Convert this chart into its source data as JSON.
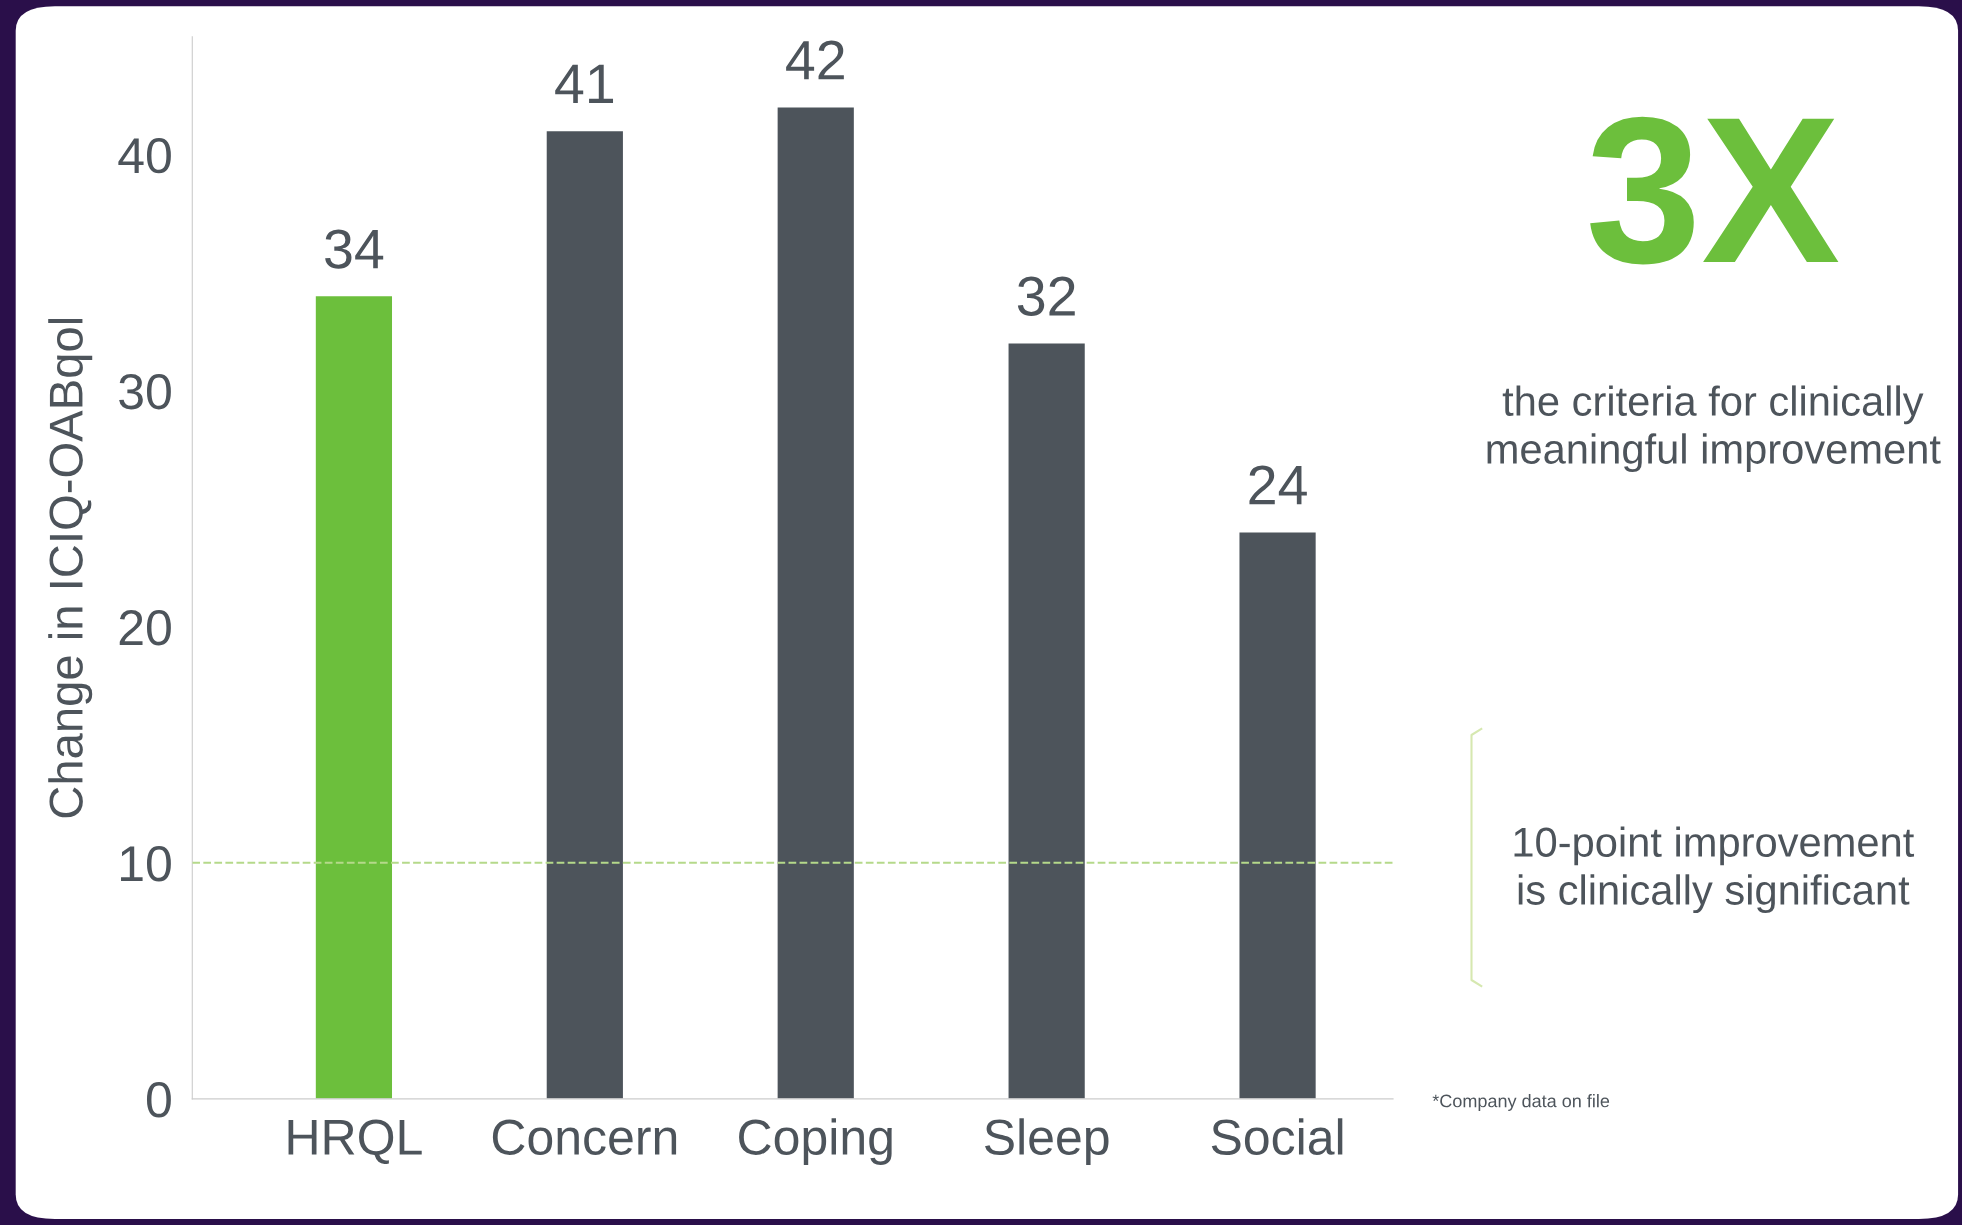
{
  "chart_data": {
    "type": "bar",
    "ylabel": "Change in ICIQ-OABqol",
    "categories": [
      "HRQL",
      "Concern",
      "Coping",
      "Sleep",
      "Social"
    ],
    "values": [
      34,
      41,
      42,
      32,
      24
    ],
    "colors": [
      "#6cbf3c",
      "#4d545b",
      "#4d545b",
      "#4d545b",
      "#4d545b"
    ],
    "data_labels": true,
    "ylim": [
      0,
      45
    ],
    "yticks": [
      0,
      10,
      20,
      30,
      40
    ],
    "grid": false,
    "ref_lines": [
      {
        "axis": "y",
        "value": 10,
        "color": "#b5d98a",
        "line_style": "dashed"
      }
    ],
    "annotations": [
      "3X",
      "the criteria for clinically\nmeaningful improvement",
      "10-point improvement\nis clinically significant",
      "*Company data on file"
    ]
  }
}
